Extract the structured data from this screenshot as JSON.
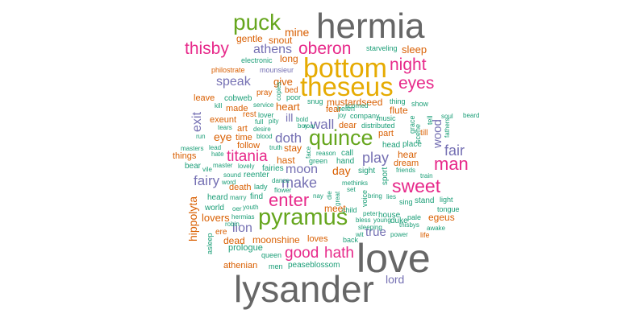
{
  "palette": {
    "gray": "#666666",
    "gold": "#e6ab02",
    "pink": "#e7298a",
    "green": "#66a61e",
    "purple": "#7570b3",
    "orange": "#d95f02",
    "teal": "#1b9e77"
  },
  "words": [
    "hermia",
    "love",
    "lysander",
    "bottom",
    "theseus",
    "pyramus",
    "puck",
    "quince",
    "oberon",
    "night",
    "thisby",
    "eyes",
    "sweet",
    "man",
    "enter",
    "titania",
    "good",
    "hath",
    "play",
    "make",
    "fair",
    "athens",
    "speak",
    "wall",
    "doth",
    "fairy",
    "moon",
    "exit",
    "lion",
    "true",
    "wood",
    "mine",
    "sleep",
    "snout",
    "gentle",
    "long",
    "give",
    "mustardseed",
    "heart",
    "eye",
    "day",
    "hast",
    "stay",
    "lovers",
    "dead",
    "moonshine",
    "loves",
    "hippolyta",
    "lord",
    "starveling",
    "electronic",
    "philostrate",
    "mounsieur",
    "pray",
    "bed",
    "poor",
    "copies",
    "leave",
    "cobweb",
    "exeunt",
    "rest",
    "lover",
    "service",
    "snug",
    "helen",
    "scorned",
    "thing",
    "show",
    "soul",
    "beard",
    "kill",
    "made",
    "art",
    "ill",
    "fear",
    "flute",
    "pity",
    "company",
    "music",
    "joy",
    "bold",
    "tears",
    "desire",
    "full",
    "blood",
    "roar",
    "boy",
    "dear",
    "distributed",
    "till",
    "scene",
    "tell",
    "fathers",
    "time",
    "follow",
    "truth",
    "face",
    "reason",
    "call",
    "part",
    "hear",
    "dream",
    "head",
    "place",
    "masters",
    "lead",
    "things",
    "hate",
    "vile",
    "master",
    "lovely",
    "green",
    "hand",
    "sight",
    "sport",
    "friends",
    "train",
    "bear",
    "sound",
    "reenter",
    "fairies",
    "lady",
    "dance",
    "flower",
    "death",
    "nay",
    "die",
    "great",
    "set",
    "bring",
    "lies",
    "sing",
    "stand",
    "light",
    "heard",
    "marry",
    "find",
    "voice",
    "methinks",
    "tongue",
    "world",
    "oer",
    "youth",
    "meet",
    "child",
    "peter",
    "house",
    "pale",
    "egeus",
    "run",
    "word",
    "hermias",
    "ere",
    "bless",
    "sleeping",
    "duke",
    "thisbys",
    "awake",
    "life",
    "asleep",
    "robin",
    "young",
    "wit",
    "power",
    "back",
    "prologue",
    "queen",
    "athenian",
    "men",
    "peaseblossom",
    "grace"
  ]
}
